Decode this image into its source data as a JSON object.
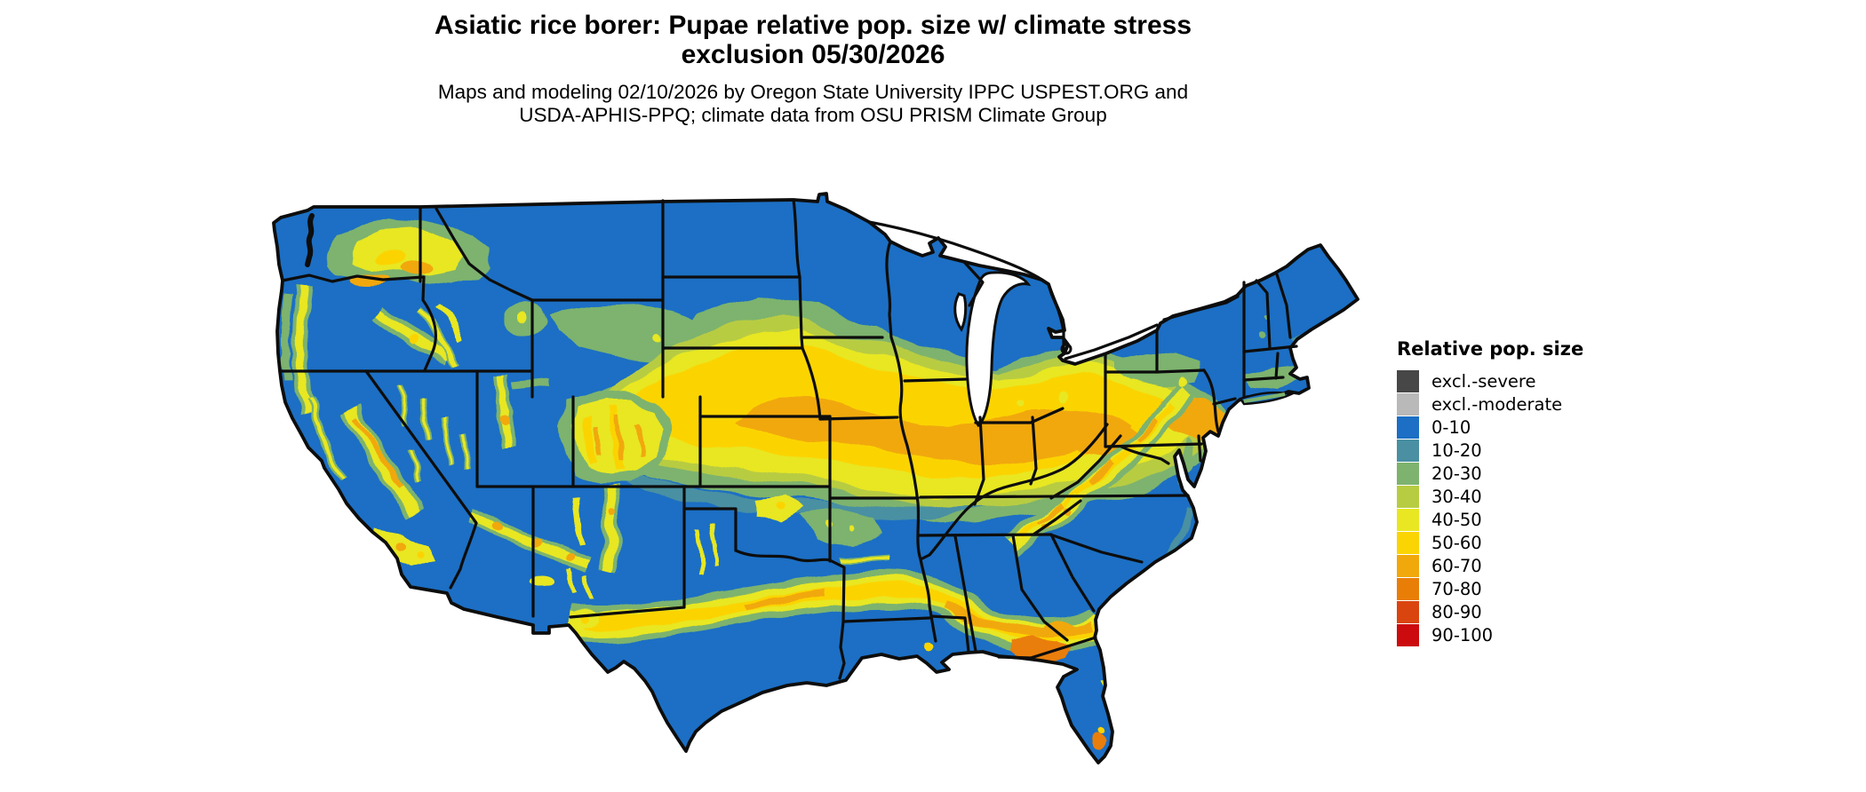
{
  "header": {
    "title_line1": "Asiatic rice borer: Pupae relative pop. size w/ climate stress",
    "title_line2": "exclusion 05/30/2026",
    "subtitle_line1": "Maps and modeling 02/10/2026 by Oregon State University IPPC USPEST.ORG and",
    "subtitle_line2": "USDA-APHIS-PPQ; climate data from OSU PRISM Climate Group"
  },
  "legend": {
    "title": "Relative pop. size",
    "items": [
      {
        "key": "excl_severe",
        "label": "excl.-severe",
        "color": "#474747"
      },
      {
        "key": "excl_moderate",
        "label": "excl.-moderate",
        "color": "#b9b9b9"
      },
      {
        "key": "b0",
        "label": "0-10",
        "color": "#1c6fc4"
      },
      {
        "key": "b10",
        "label": "10-20",
        "color": "#4a90a2"
      },
      {
        "key": "b20",
        "label": "20-30",
        "color": "#7db36e"
      },
      {
        "key": "b30",
        "label": "30-40",
        "color": "#b8cc42"
      },
      {
        "key": "b40",
        "label": "40-50",
        "color": "#e8e722"
      },
      {
        "key": "b50",
        "label": "50-60",
        "color": "#fbd403"
      },
      {
        "key": "b60",
        "label": "60-70",
        "color": "#f1a80b"
      },
      {
        "key": "b70",
        "label": "70-80",
        "color": "#e97e07"
      },
      {
        "key": "b80",
        "label": "80-90",
        "color": "#da450f"
      },
      {
        "key": "b90",
        "label": "90-100",
        "color": "#cc0b0e"
      }
    ]
  },
  "map": {
    "region": "Contiguous United States",
    "type": "raster choropleth of relative population size",
    "base_category": "0-10",
    "high_zones": "central corn-belt band (Nebraska–Iowa–Illinois–Indiana–Ohio–Pennsylvania), Gulf coastal plain (central Texas–Louisiana–Alabama–Georgia–Florida panhandle), Appalachian ridge, western mountain ranges"
  }
}
